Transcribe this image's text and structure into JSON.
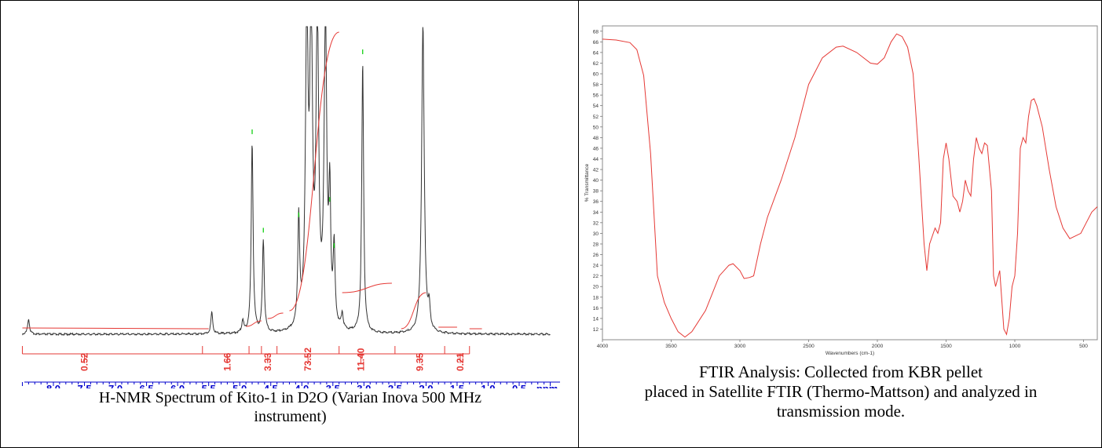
{
  "nmr": {
    "caption_line1": "H-NMR Spectrum of Kito-1 in D2O (Varian Inova 500 MHz",
    "caption_line2": "instrument)",
    "chart_data": {
      "type": "line",
      "title": "",
      "xlabel": "ppm",
      "ylabel": "",
      "x_reversed": true,
      "xlim": [
        8.5,
        0.0
      ],
      "tick_labels": [
        "8.0",
        "7.5",
        "7.0",
        "6.5",
        "6.0",
        "5.5",
        "5.0",
        "4.5",
        "4.0",
        "3.5",
        "3.0",
        "2.5",
        "2.0",
        "1.5",
        "1.0",
        "0.5",
        "ppm"
      ],
      "peaks": [
        {
          "ppm": 8.4,
          "intensity": 0.05
        },
        {
          "ppm": 5.45,
          "intensity": 0.07
        },
        {
          "ppm": 4.95,
          "intensity": 0.04
        },
        {
          "ppm": 4.8,
          "intensity": 0.62
        },
        {
          "ppm": 4.62,
          "intensity": 0.3
        },
        {
          "ppm": 4.05,
          "intensity": 0.35
        },
        {
          "ppm": 3.92,
          "intensity": 1.0
        },
        {
          "ppm": 3.85,
          "intensity": 1.0
        },
        {
          "ppm": 3.75,
          "intensity": 1.0
        },
        {
          "ppm": 3.62,
          "intensity": 1.0
        },
        {
          "ppm": 3.55,
          "intensity": 0.4
        },
        {
          "ppm": 3.48,
          "intensity": 0.25
        },
        {
          "ppm": 3.35,
          "intensity": 0.05
        },
        {
          "ppm": 3.02,
          "intensity": 0.88
        },
        {
          "ppm": 2.05,
          "intensity": 1.0
        },
        {
          "ppm": 1.95,
          "intensity": 0.07
        }
      ],
      "integrals": [
        {
          "label": "0.52",
          "ppm": 7.5
        },
        {
          "label": "1.66",
          "ppm": 5.2
        },
        {
          "label": "3.33",
          "ppm": 4.55
        },
        {
          "label": "73.52",
          "ppm": 3.9
        },
        {
          "label": "11.40",
          "ppm": 3.05
        },
        {
          "label": "9.35",
          "ppm": 2.1
        },
        {
          "label": "0.21",
          "ppm": 1.45
        }
      ],
      "colors": {
        "spectrum": "#333333",
        "integral": "#e53935",
        "axis": "#0000cc",
        "peak_marker": "#00cc00"
      }
    }
  },
  "ftir": {
    "caption_line1": "FTIR Analysis: Collected from KBR pellet",
    "caption_line2": "placed in Satellite FTIR (Thermo-Mattson) and analyzed in",
    "caption_line3": "transmission mode.",
    "chart_data": {
      "type": "line",
      "title": "",
      "xlabel": "Wavenumbers (cm-1)",
      "ylabel": "% Transmittance",
      "x_reversed": true,
      "xlim": [
        4000,
        400
      ],
      "ylim": [
        10,
        69
      ],
      "x_tick_labels": [
        "4000",
        "3500",
        "3000",
        "2500",
        "2000",
        "1500",
        "1000",
        "500"
      ],
      "y_tick_labels": [
        "12",
        "14",
        "16",
        "18",
        "20",
        "22",
        "24",
        "26",
        "28",
        "30",
        "32",
        "34",
        "36",
        "38",
        "40",
        "42",
        "44",
        "46",
        "48",
        "50",
        "52",
        "54",
        "56",
        "58",
        "60",
        "62",
        "64",
        "66",
        "68"
      ],
      "series": [
        {
          "color": "#e53935",
          "points": [
            [
              4000,
              66.5
            ],
            [
              3900,
              66
            ],
            [
              3800,
              65.5
            ],
            [
              3750,
              64.5
            ],
            [
              3700,
              60
            ],
            [
              3650,
              45
            ],
            [
              3600,
              22
            ],
            [
              3550,
              17
            ],
            [
              3500,
              14
            ],
            [
              3450,
              11.5
            ],
            [
              3400,
              10.5
            ],
            [
              3350,
              11.5
            ],
            [
              3250,
              15.5
            ],
            [
              3150,
              22
            ],
            [
              3080,
              24
            ],
            [
              3050,
              24.3
            ],
            [
              3000,
              23
            ],
            [
              2970,
              21.5
            ],
            [
              2930,
              21.7
            ],
            [
              2900,
              22
            ],
            [
              2850,
              28
            ],
            [
              2800,
              33
            ],
            [
              2700,
              40
            ],
            [
              2600,
              48
            ],
            [
              2500,
              58
            ],
            [
              2400,
              63
            ],
            [
              2300,
              65
            ],
            [
              2250,
              65.2
            ],
            [
              2150,
              64
            ],
            [
              2050,
              62
            ],
            [
              2000,
              61.8
            ],
            [
              1950,
              63
            ],
            [
              1900,
              66
            ],
            [
              1860,
              67.5
            ],
            [
              1820,
              67
            ],
            [
              1780,
              65
            ],
            [
              1740,
              60
            ],
            [
              1700,
              45
            ],
            [
              1660,
              28
            ],
            [
              1640,
              23
            ],
            [
              1620,
              28
            ],
            [
              1580,
              31
            ],
            [
              1560,
              30
            ],
            [
              1540,
              32
            ],
            [
              1520,
              44
            ],
            [
              1500,
              47
            ],
            [
              1480,
              44
            ],
            [
              1450,
              37
            ],
            [
              1420,
              36
            ],
            [
              1400,
              34
            ],
            [
              1380,
              36
            ],
            [
              1360,
              40
            ],
            [
              1340,
              38
            ],
            [
              1320,
              37
            ],
            [
              1300,
              44
            ],
            [
              1280,
              48
            ],
            [
              1260,
              46
            ],
            [
              1240,
              45
            ],
            [
              1220,
              47
            ],
            [
              1200,
              46.5
            ],
            [
              1170,
              38
            ],
            [
              1155,
              22
            ],
            [
              1140,
              20
            ],
            [
              1110,
              23
            ],
            [
              1080,
              12
            ],
            [
              1060,
              11
            ],
            [
              1040,
              14
            ],
            [
              1020,
              20
            ],
            [
              1000,
              22
            ],
            [
              980,
              30
            ],
            [
              960,
              46
            ],
            [
              940,
              48
            ],
            [
              920,
              47
            ],
            [
              900,
              52
            ],
            [
              880,
              55
            ],
            [
              860,
              55.3
            ],
            [
              840,
              54
            ],
            [
              800,
              50
            ],
            [
              750,
              42
            ],
            [
              700,
              35
            ],
            [
              650,
              31
            ],
            [
              600,
              29
            ],
            [
              560,
              29.5
            ],
            [
              520,
              30
            ],
            [
              480,
              32
            ],
            [
              440,
              34
            ],
            [
              400,
              35
            ]
          ]
        }
      ]
    }
  }
}
